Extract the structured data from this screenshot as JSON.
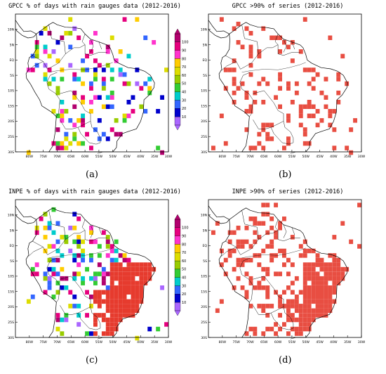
{
  "panels": [
    {
      "id": "a",
      "title": "GPCC % of days with rain gauges data (2012-2016)",
      "label": "(a)",
      "has_colorbar": true,
      "fill_mode": "mixed",
      "coverage": "sparse"
    },
    {
      "id": "b",
      "title": "GPCC >90% of series (2012-2016)",
      "label": "(b)",
      "has_colorbar": false,
      "fill_mode": "red",
      "coverage": "sparse"
    },
    {
      "id": "c",
      "title": "INPE % of days with rain gauges data (2012-2016)",
      "label": "(c)",
      "has_colorbar": true,
      "fill_mode": "mixed",
      "coverage": "dense-east"
    },
    {
      "id": "d",
      "title": "INPE >90% of series (2012-2016)",
      "label": "(d)",
      "has_colorbar": false,
      "fill_mode": "red",
      "coverage": "dense-east"
    }
  ],
  "axes": {
    "lon_ticks": [
      "80W",
      "75W",
      "70W",
      "65W",
      "60W",
      "55W",
      "50W",
      "45W",
      "40W",
      "35W",
      "30W"
    ],
    "lat_ticks": [
      "10N",
      "5N",
      "EQ",
      "5S",
      "10S",
      "15S",
      "20S",
      "25S",
      "30S"
    ]
  },
  "colorbar": {
    "ticks": [
      "100",
      "90",
      "80",
      "70",
      "60",
      "50",
      "40",
      "30",
      "20",
      "10"
    ],
    "colors": [
      "#b2006e",
      "#e6007e",
      "#ff33cc",
      "#ffcc00",
      "#dddd00",
      "#99cc00",
      "#33cc33",
      "#00cccc",
      "#3366ff",
      "#0000cc",
      "#aa66ff"
    ]
  },
  "map_colors": {
    "highlight": "#e63b2e",
    "coast": "#000000",
    "background": "#ffffff"
  }
}
